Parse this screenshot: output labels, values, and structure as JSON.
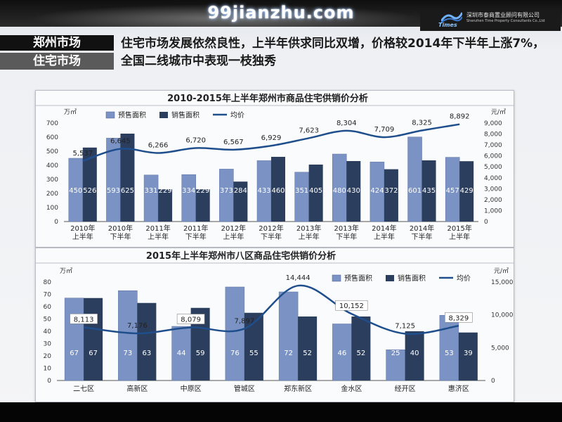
{
  "watermark": "99jianzhu.com",
  "logo": {
    "company_cn": "深圳市泰商置业顾问有限公司",
    "company_en": "Shenzhen Time Property Consultants Co.,Ltd",
    "brand": "Times"
  },
  "section": {
    "tag_line1": "郑州市场",
    "tag_line2": "住宅市场",
    "headline": "住宅市场发展依然良性，上半年供求同比双增，价格较2014年下半年上涨7%，全国二线城市中表现一枝独秀"
  },
  "colors": {
    "presale": "#7b93c4",
    "sales": "#2c3e5e",
    "price_line": "#1f4e8c"
  },
  "chart_data": [
    {
      "type": "bar",
      "title": "2010-2015年上半年郑州市商品住宅供销价分析",
      "categories": [
        [
          "2010年",
          "上半年"
        ],
        [
          "2010年",
          "下半年"
        ],
        [
          "2011年",
          "上半年"
        ],
        [
          "2011年",
          "下半年"
        ],
        [
          "2012年",
          "上半年"
        ],
        [
          "2012年",
          "下半年"
        ],
        [
          "2013年",
          "上半年"
        ],
        [
          "2013年",
          "下半年"
        ],
        [
          "2014年",
          "上半年"
        ],
        [
          "2014年",
          "下半年"
        ],
        [
          "2015年",
          "上半年"
        ]
      ],
      "series": [
        {
          "name": "预售面积",
          "kind": "bar",
          "axis": "left",
          "values": [
            450,
            593,
            331,
            334,
            373,
            433,
            351,
            480,
            424,
            601,
            457
          ]
        },
        {
          "name": "销售面积",
          "kind": "bar",
          "axis": "left",
          "values": [
            526,
            625,
            229,
            229,
            284,
            460,
            405,
            430,
            372,
            435,
            429
          ]
        },
        {
          "name": "均价",
          "kind": "line",
          "axis": "right",
          "values": [
            5537,
            6645,
            6266,
            6720,
            6567,
            6929,
            7623,
            8304,
            7709,
            8325,
            8892
          ]
        }
      ],
      "y_left": {
        "unit": "万㎡",
        "ticks": [
          0,
          100,
          200,
          300,
          400,
          500,
          600,
          700
        ],
        "range": [
          0,
          700
        ]
      },
      "y_right": {
        "unit": "元/㎡",
        "ticks": [
          "0",
          "1,000",
          "2,000",
          "3,000",
          "4,000",
          "5,000",
          "6,000",
          "7,000",
          "8,000",
          "9,000"
        ],
        "range": [
          0,
          9000
        ]
      },
      "bar_labels": {
        "presale": [
          "450",
          "593",
          "331",
          "334",
          "373",
          "433",
          "351",
          "480",
          "424",
          "601",
          "457"
        ],
        "sales": [
          "526",
          "625",
          "229",
          "229",
          "284",
          "460",
          "405",
          "430",
          "372",
          "435",
          "429"
        ]
      },
      "line_labels": [
        "5,537",
        "6,645",
        "6,266",
        "6,720",
        "6,567",
        "6,929",
        "7,623",
        "8,304",
        "7,709",
        "8,325",
        "8,892"
      ],
      "legend": [
        "预售面积",
        "销售面积",
        "均价"
      ],
      "legend_position": "top"
    },
    {
      "type": "bar",
      "title": "2015年上半年郑州市八区商品住宅供销价分析",
      "categories": [
        "二七区",
        "高新区",
        "中原区",
        "管城区",
        "郑东新区",
        "金水区",
        "经开区",
        "惠济区"
      ],
      "series": [
        {
          "name": "预售面积",
          "kind": "bar",
          "axis": "left",
          "values": [
            67,
            73,
            44,
            76,
            72,
            46,
            25,
            53
          ]
        },
        {
          "name": "销售面积",
          "kind": "bar",
          "axis": "left",
          "values": [
            67,
            63,
            59,
            55,
            52,
            52,
            40,
            39
          ]
        },
        {
          "name": "均价",
          "kind": "line",
          "axis": "right",
          "values": [
            8113,
            7176,
            8079,
            7897,
            14444,
            10152,
            7125,
            8329
          ]
        }
      ],
      "y_left": {
        "unit": "万㎡",
        "ticks": [
          0,
          10,
          20,
          30,
          40,
          50,
          60,
          70,
          80
        ],
        "range": [
          0,
          80
        ]
      },
      "y_right": {
        "unit": "元/㎡",
        "ticks": [
          "0",
          "5,000",
          "10,000",
          "15,000"
        ],
        "range": [
          0,
          15000
        ]
      },
      "bar_labels": {
        "presale": [
          "67",
          "73",
          "44",
          "76",
          "72",
          "46",
          "25",
          "53"
        ],
        "sales": [
          "67",
          "63",
          "59",
          "55",
          "52",
          "52",
          "40",
          "39"
        ]
      },
      "line_labels": [
        "8,113",
        "7,176",
        "8,079",
        "7,897",
        "14,444",
        "10,152",
        "7,125",
        "8,329"
      ],
      "line_label_boxed": [
        true,
        false,
        true,
        false,
        false,
        true,
        false,
        true
      ],
      "legend": [
        "预售面积",
        "销售面积",
        "均价"
      ],
      "legend_position": "top-right"
    }
  ]
}
